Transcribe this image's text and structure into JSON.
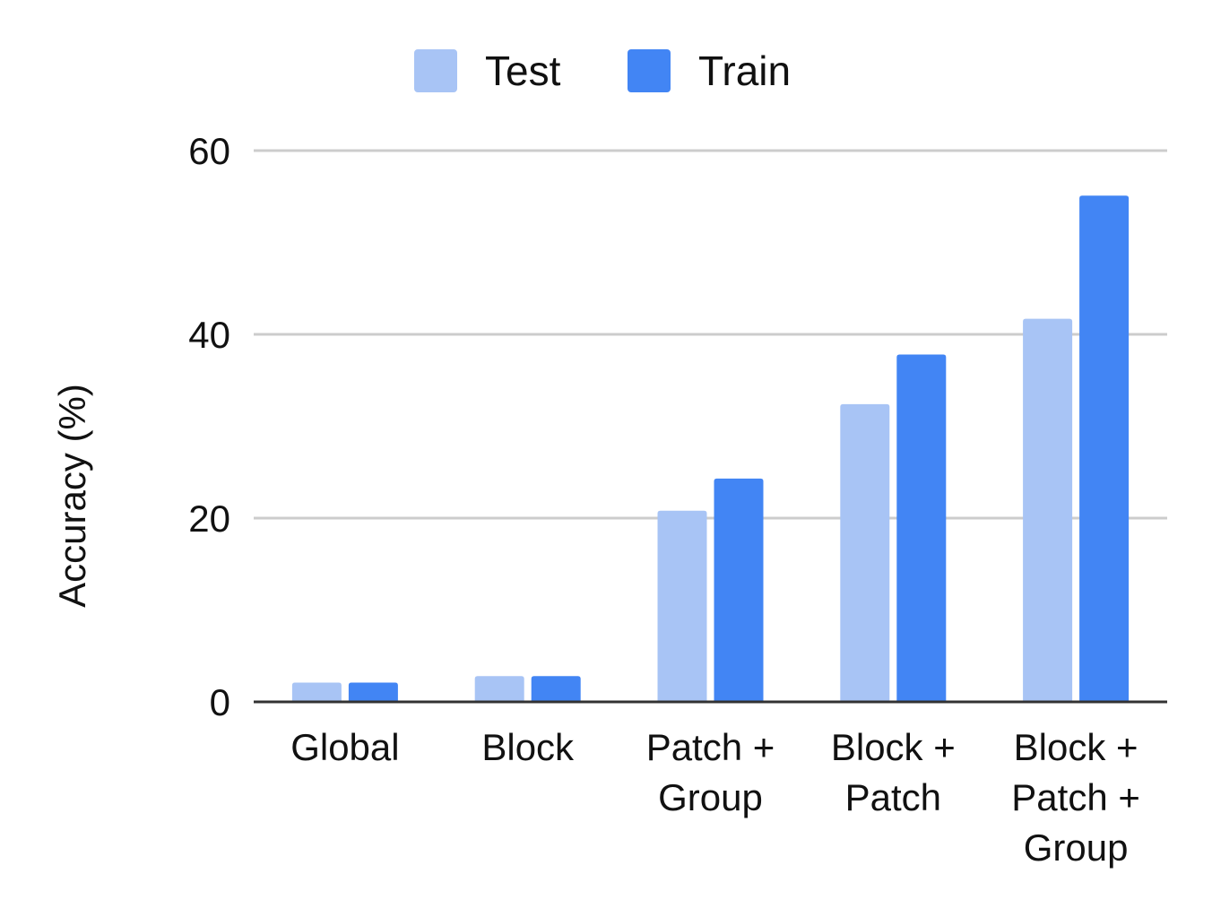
{
  "chart_data": {
    "type": "bar",
    "title": "",
    "xlabel": "",
    "ylabel": "Accuracy (%)",
    "ylim": [
      0,
      60
    ],
    "yticks": [
      0,
      20,
      40,
      60
    ],
    "grid": true,
    "legend_position": "top-center",
    "categories": [
      [
        "Global"
      ],
      [
        "Block"
      ],
      [
        "Patch +",
        "Group"
      ],
      [
        "Block +",
        "Patch"
      ],
      [
        "Block +",
        "Patch +",
        "Group"
      ]
    ],
    "series": [
      {
        "name": "Test",
        "color": "#a8c4f5",
        "values": [
          2.1,
          2.8,
          20.8,
          32.4,
          41.7
        ]
      },
      {
        "name": "Train",
        "color": "#4285f4",
        "values": [
          2.1,
          2.8,
          24.3,
          37.8,
          55.1
        ]
      }
    ]
  }
}
